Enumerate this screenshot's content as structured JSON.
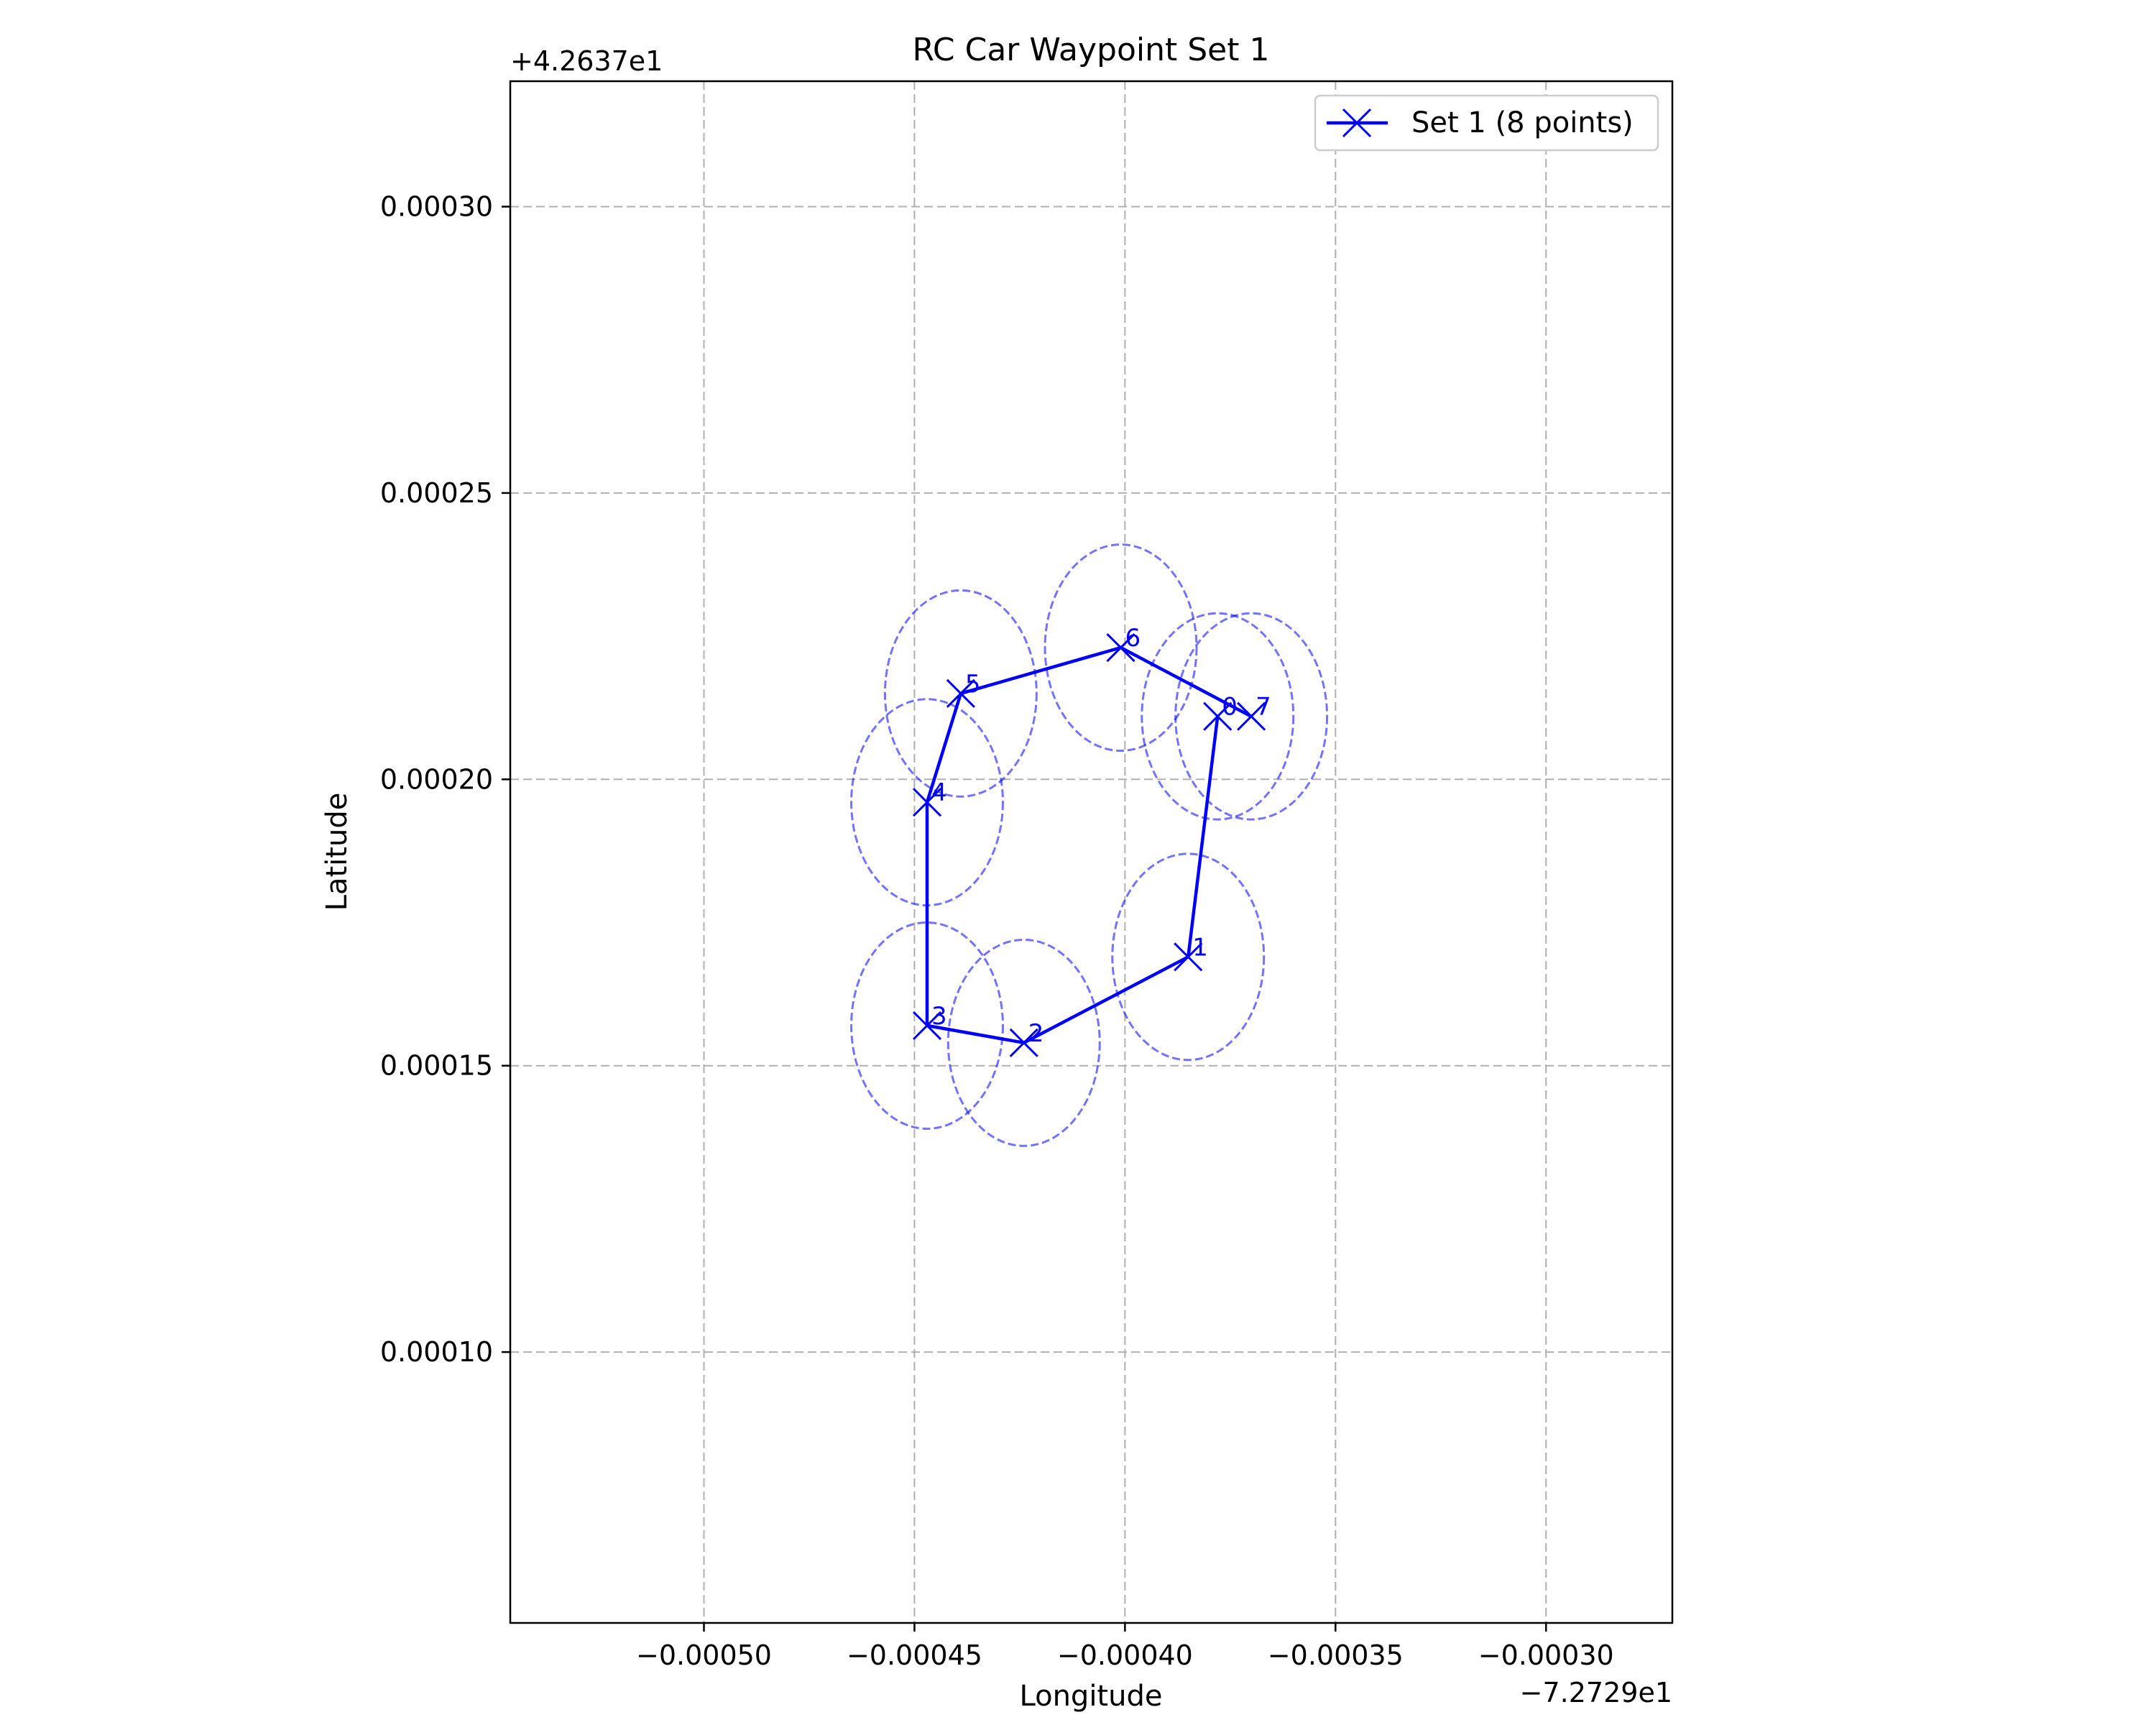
{
  "chart_data": {
    "type": "scatter",
    "title": "RC Car Waypoint Set 1",
    "xlabel": "Longitude",
    "ylabel": "Latitude",
    "x_offset_label": "−7.2729e1",
    "y_offset_label": "+4.2637e1",
    "xlim": [
      -0.000546,
      -0.00027
    ],
    "ylim": [
      5.27e-05,
      0.0003219
    ],
    "x_ticks": [
      -0.0005,
      -0.00045,
      -0.0004,
      -0.00035,
      -0.0003
    ],
    "x_tick_labels": [
      "−0.00050",
      "−0.00045",
      "−0.00040",
      "−0.00035",
      "−0.00030"
    ],
    "y_ticks": [
      0.0001,
      0.00015,
      0.0002,
      0.00025,
      0.0003
    ],
    "y_tick_labels": [
      "0.00010",
      "0.00015",
      "0.00020",
      "0.00025",
      "0.00030"
    ],
    "grid": true,
    "legend_position": "top-right",
    "series": [
      {
        "name": "Set 1 (8 points)",
        "color": "#0000ff",
        "marker": "x",
        "circle_radius_lon": 1.8e-05,
        "circle_radius_lat": 1.8e-05,
        "points": [
          {
            "label": "0",
            "x": -0.000378,
            "y": 0.000211
          },
          {
            "label": "1",
            "x": -0.000385,
            "y": 0.000169
          },
          {
            "label": "2",
            "x": -0.000424,
            "y": 0.000154
          },
          {
            "label": "3",
            "x": -0.000447,
            "y": 0.000157
          },
          {
            "label": "4",
            "x": -0.000447,
            "y": 0.000196
          },
          {
            "label": "5",
            "x": -0.000439,
            "y": 0.000215
          },
          {
            "label": "6",
            "x": -0.000401,
            "y": 0.000223
          },
          {
            "label": "7",
            "x": -0.00037,
            "y": 0.000211
          }
        ]
      }
    ]
  }
}
